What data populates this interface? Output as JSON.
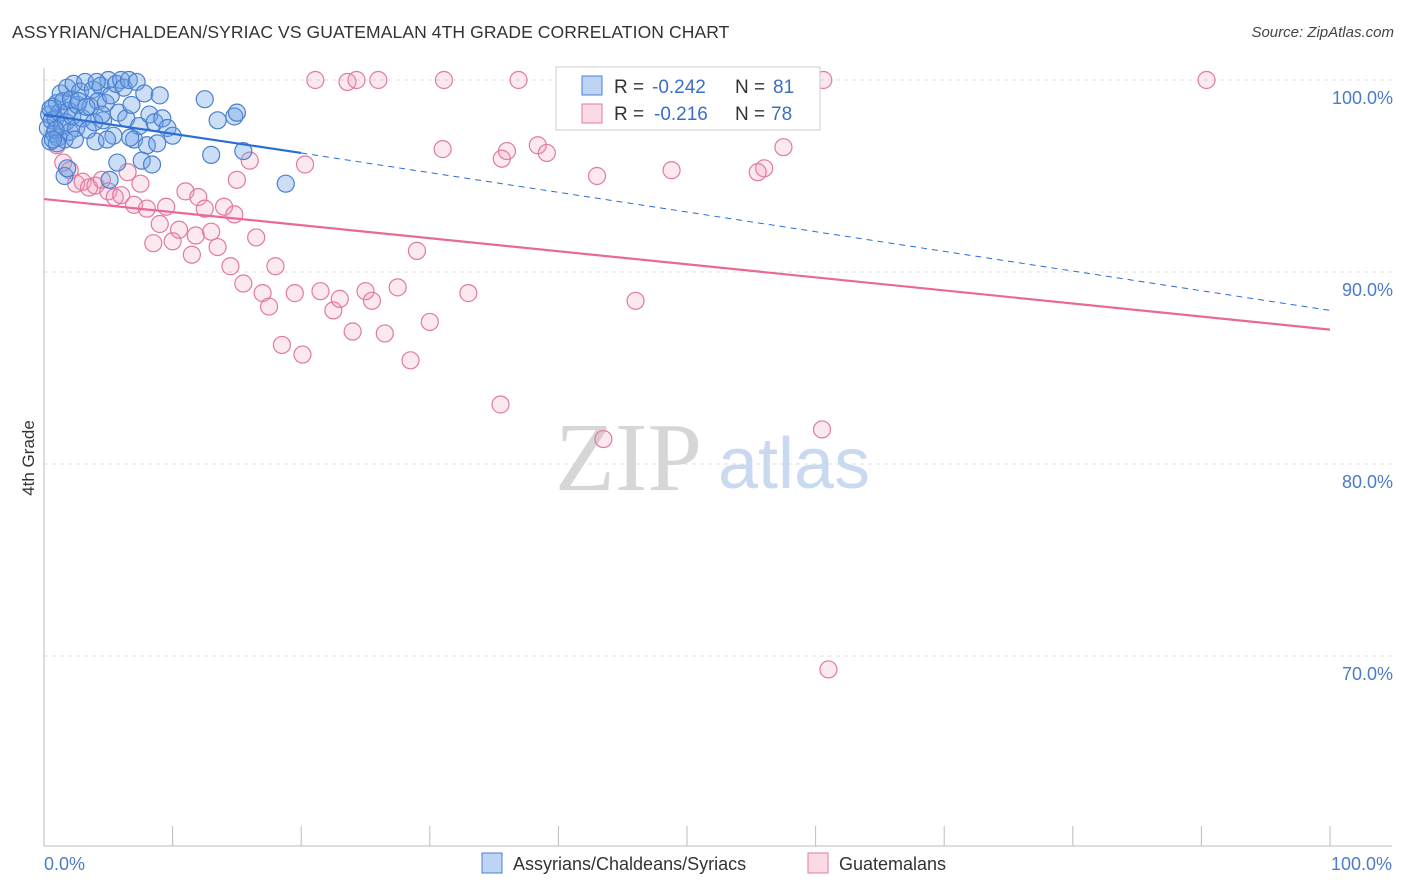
{
  "title": "ASSYRIAN/CHALDEAN/SYRIAC VS GUATEMALAN 4TH GRADE CORRELATION CHART",
  "source": "Source: ZipAtlas.com",
  "watermark": {
    "zip": "ZIP",
    "atlas": "atlas"
  },
  "colors": {
    "blue": "#4a80d0",
    "pink": "#e07aa0",
    "blue_line": "#2b6ed1",
    "pink_line": "#e8689a"
  },
  "legend": {
    "rows": [
      {
        "r_label": "R =",
        "r_value": "-0.242",
        "n_label": "N =",
        "n_value": "81"
      },
      {
        "r_label": "R =",
        "r_value": "-0.216",
        "n_label": "N =",
        "n_value": "78"
      }
    ]
  },
  "chart_data": {
    "type": "scatter",
    "title": "ASSYRIAN/CHALDEAN/SYRIAC VS GUATEMALAN 4TH GRADE CORRELATION CHART",
    "xlabel": "",
    "ylabel": "4th Grade",
    "xlim": [
      0,
      100
    ],
    "ylim": [
      60,
      102
    ],
    "x_tick_labels": [
      "0.0%",
      "100.0%"
    ],
    "y_ticks": [
      100,
      90,
      80,
      70
    ],
    "y_tick_labels": [
      "100.0%",
      "90.0%",
      "80.0%",
      "70.0%"
    ],
    "series": [
      {
        "name": "Assyrians/Chaldeans/Syriacs",
        "R": -0.242,
        "N": 81,
        "trend": {
          "x0": 0,
          "y0": 98.2,
          "x1": 20,
          "y1": 96.2,
          "dashed_to_x": 100,
          "dashed_to_y": 88.0
        },
        "points": [
          [
            0.3,
            97.5
          ],
          [
            0.4,
            98.2
          ],
          [
            0.5,
            96.8
          ],
          [
            0.6,
            97.9
          ],
          [
            0.7,
            98.6
          ],
          [
            0.8,
            97.2
          ],
          [
            0.9,
            98.0
          ],
          [
            1.0,
            98.8
          ],
          [
            1.1,
            97.0
          ],
          [
            1.2,
            98.3
          ],
          [
            1.3,
            99.3
          ],
          [
            1.4,
            97.6
          ],
          [
            1.5,
            98.9
          ],
          [
            1.6,
            96.9
          ],
          [
            1.7,
            97.8
          ],
          [
            1.8,
            99.6
          ],
          [
            1.9,
            98.4
          ],
          [
            2.0,
            97.3
          ],
          [
            2.1,
            99.0
          ],
          [
            2.2,
            98.1
          ],
          [
            2.3,
            99.8
          ],
          [
            2.5,
            97.5
          ],
          [
            2.6,
            98.7
          ],
          [
            2.8,
            99.4
          ],
          [
            3.0,
            98.0
          ],
          [
            3.2,
            99.9
          ],
          [
            3.4,
            97.4
          ],
          [
            3.6,
            98.6
          ],
          [
            3.8,
            99.5
          ],
          [
            4.0,
            96.8
          ],
          [
            4.2,
            98.9
          ],
          [
            4.4,
            99.7
          ],
          [
            4.6,
            97.9
          ],
          [
            4.8,
            98.8
          ],
          [
            5.0,
            100.0
          ],
          [
            5.2,
            99.2
          ],
          [
            5.4,
            97.1
          ],
          [
            5.6,
            99.8
          ],
          [
            5.8,
            98.3
          ],
          [
            6.0,
            100.0
          ],
          [
            6.2,
            99.6
          ],
          [
            6.4,
            98.0
          ],
          [
            6.6,
            100.0
          ],
          [
            6.8,
            98.7
          ],
          [
            7.0,
            96.9
          ],
          [
            7.2,
            99.9
          ],
          [
            7.4,
            97.6
          ],
          [
            7.6,
            95.8
          ],
          [
            7.8,
            99.3
          ],
          [
            8.0,
            96.6
          ],
          [
            8.2,
            98.2
          ],
          [
            8.4,
            95.6
          ],
          [
            8.6,
            97.8
          ],
          [
            8.8,
            96.7
          ],
          [
            9.0,
            99.2
          ],
          [
            9.2,
            98.0
          ],
          [
            9.6,
            97.5
          ],
          [
            10.0,
            97.1
          ],
          [
            12.5,
            99.0
          ],
          [
            13.0,
            96.1
          ],
          [
            13.5,
            97.9
          ],
          [
            14.8,
            98.1
          ],
          [
            15.0,
            98.3
          ],
          [
            15.5,
            96.3
          ],
          [
            18.8,
            94.6
          ],
          [
            1.6,
            95.0
          ],
          [
            1.8,
            95.4
          ],
          [
            2.4,
            96.9
          ],
          [
            3.9,
            97.8
          ],
          [
            4.5,
            98.2
          ],
          [
            5.1,
            94.8
          ],
          [
            6.7,
            97.0
          ],
          [
            0.9,
            97.4
          ],
          [
            1.0,
            96.7
          ],
          [
            2.7,
            98.9
          ],
          [
            3.3,
            98.6
          ],
          [
            4.1,
            99.9
          ],
          [
            4.9,
            96.9
          ],
          [
            5.7,
            95.7
          ],
          [
            0.5,
            98.5
          ],
          [
            0.7,
            96.9
          ]
        ]
      },
      {
        "name": "Guatemalans",
        "R": -0.216,
        "N": 78,
        "trend": {
          "x0": 0,
          "y0": 93.8,
          "x1": 100,
          "y1": 87.0
        },
        "points": [
          [
            21.1,
            100.0
          ],
          [
            23.6,
            99.9
          ],
          [
            24.3,
            100.0
          ],
          [
            26.0,
            100.0
          ],
          [
            31.1,
            100.0
          ],
          [
            36.9,
            100.0
          ],
          [
            46.0,
            100.0
          ],
          [
            53.1,
            100.0
          ],
          [
            60.6,
            100.0
          ],
          [
            90.4,
            100.0
          ],
          [
            31.0,
            96.4
          ],
          [
            35.6,
            95.9
          ],
          [
            36.0,
            96.3
          ],
          [
            38.4,
            96.6
          ],
          [
            39.1,
            96.2
          ],
          [
            43.0,
            95.0
          ],
          [
            48.8,
            95.3
          ],
          [
            57.5,
            96.5
          ],
          [
            56.0,
            95.4
          ],
          [
            55.5,
            95.2
          ],
          [
            1.0,
            96.6
          ],
          [
            1.5,
            95.7
          ],
          [
            2.0,
            95.3
          ],
          [
            2.5,
            94.6
          ],
          [
            3.0,
            94.7
          ],
          [
            3.5,
            94.4
          ],
          [
            4.0,
            94.5
          ],
          [
            4.5,
            94.8
          ],
          [
            5.0,
            94.2
          ],
          [
            5.5,
            93.9
          ],
          [
            6.0,
            94.0
          ],
          [
            6.5,
            95.2
          ],
          [
            7.0,
            93.5
          ],
          [
            7.5,
            94.6
          ],
          [
            8.0,
            93.3
          ],
          [
            8.5,
            91.5
          ],
          [
            9.0,
            92.5
          ],
          [
            9.5,
            93.4
          ],
          [
            10.0,
            91.6
          ],
          [
            10.5,
            92.2
          ],
          [
            11.0,
            94.2
          ],
          [
            11.5,
            90.9
          ],
          [
            11.8,
            91.9
          ],
          [
            12.0,
            93.9
          ],
          [
            12.5,
            93.3
          ],
          [
            13.0,
            92.1
          ],
          [
            13.5,
            91.3
          ],
          [
            14.0,
            93.4
          ],
          [
            14.5,
            90.3
          ],
          [
            14.8,
            93.0
          ],
          [
            15.0,
            94.8
          ],
          [
            15.5,
            89.4
          ],
          [
            16.0,
            95.8
          ],
          [
            16.5,
            91.8
          ],
          [
            17.0,
            88.9
          ],
          [
            17.5,
            88.2
          ],
          [
            18.0,
            90.3
          ],
          [
            18.5,
            86.2
          ],
          [
            19.5,
            88.9
          ],
          [
            20.1,
            85.7
          ],
          [
            21.5,
            89.0
          ],
          [
            22.5,
            88.0
          ],
          [
            23.0,
            88.6
          ],
          [
            24.0,
            86.9
          ],
          [
            25.0,
            89.0
          ],
          [
            25.5,
            88.5
          ],
          [
            26.5,
            86.8
          ],
          [
            27.5,
            89.2
          ],
          [
            28.5,
            85.4
          ],
          [
            29.0,
            91.1
          ],
          [
            30.0,
            87.4
          ],
          [
            33.0,
            88.9
          ],
          [
            35.5,
            83.1
          ],
          [
            43.5,
            81.3
          ],
          [
            46.0,
            88.5
          ],
          [
            60.5,
            81.8
          ],
          [
            61.0,
            69.3
          ],
          [
            20.3,
            95.6
          ]
        ]
      }
    ]
  },
  "bottom_legend": [
    {
      "label": "Assyrians/Chaldeans/Syriacs"
    },
    {
      "label": "Guatemalans"
    }
  ]
}
